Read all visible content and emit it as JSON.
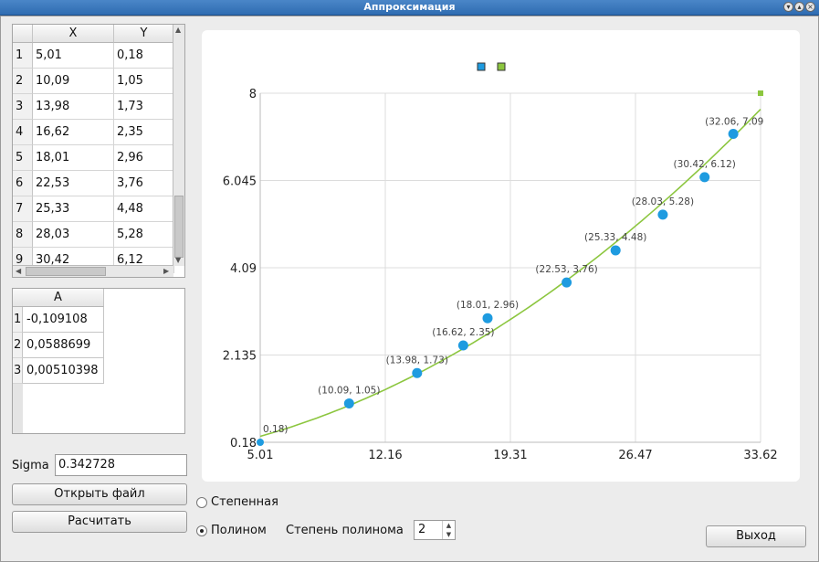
{
  "window": {
    "title": "Аппроксимация"
  },
  "data_table": {
    "headers": [
      "X",
      "Y"
    ],
    "rows": [
      {
        "n": "1",
        "x": "5,01",
        "y": "0,18"
      },
      {
        "n": "2",
        "x": "10,09",
        "y": "1,05"
      },
      {
        "n": "3",
        "x": "13,98",
        "y": "1,73"
      },
      {
        "n": "4",
        "x": "16,62",
        "y": "2,35"
      },
      {
        "n": "5",
        "x": "18,01",
        "y": "2,96"
      },
      {
        "n": "6",
        "x": "22,53",
        "y": "3,76"
      },
      {
        "n": "7",
        "x": "25,33",
        "y": "4,48"
      },
      {
        "n": "8",
        "x": "28,03",
        "y": "5,28"
      },
      {
        "n": "9",
        "x": "30,42",
        "y": "6,12"
      }
    ]
  },
  "coeff_table": {
    "header": "A",
    "rows": [
      {
        "n": "1",
        "a": "-0,109108"
      },
      {
        "n": "2",
        "a": "0,0588699"
      },
      {
        "n": "3",
        "a": "0,00510398"
      }
    ]
  },
  "sigma": {
    "label": "Sigma",
    "value": "0.342728"
  },
  "buttons": {
    "open_file": "Открыть файл",
    "calculate": "Расчитать",
    "exit": "Выход"
  },
  "options": {
    "power_label": "Степенная",
    "poly_label": "Полином",
    "selected": "poly",
    "degree_label": "Степень полинома",
    "degree_value": "2"
  },
  "colors": {
    "points": "#1e9be0",
    "curve": "#8cc63f",
    "legend_points": "#1e9be0",
    "legend_curve": "#8cc63f"
  },
  "chart_data": {
    "type": "scatter",
    "x_ticks": [
      "5.01",
      "12.16",
      "19.31",
      "26.47",
      "33.62"
    ],
    "y_ticks": [
      "0.18",
      "2.135",
      "4.09",
      "6.045",
      "8"
    ],
    "xlim": [
      5.01,
      33.62
    ],
    "ylim": [
      0.18,
      8
    ],
    "grid": true,
    "legend_placement": "top-center",
    "points": [
      {
        "x": 5.01,
        "y": 0.18,
        "label": "0.18)"
      },
      {
        "x": 10.09,
        "y": 1.05,
        "label": "(10.09, 1.05)"
      },
      {
        "x": 13.98,
        "y": 1.73,
        "label": "(13.98, 1.73)"
      },
      {
        "x": 16.62,
        "y": 2.35,
        "label": "(16.62, 2.35)"
      },
      {
        "x": 18.01,
        "y": 2.96,
        "label": "(18.01, 2.96)"
      },
      {
        "x": 22.53,
        "y": 3.76,
        "label": "(22.53, 3.76)"
      },
      {
        "x": 25.33,
        "y": 4.48,
        "label": "(25.33, 4.48)"
      },
      {
        "x": 28.03,
        "y": 5.28,
        "label": "(28.03, 5.28)"
      },
      {
        "x": 30.42,
        "y": 6.12,
        "label": "(30.42, 6.12)"
      },
      {
        "x": 32.06,
        "y": 7.09,
        "label": "(32.06, 7.09"
      }
    ],
    "fit": {
      "type": "polynomial",
      "coefficients": [
        -0.109108,
        0.0588699,
        0.00510398
      ]
    }
  }
}
